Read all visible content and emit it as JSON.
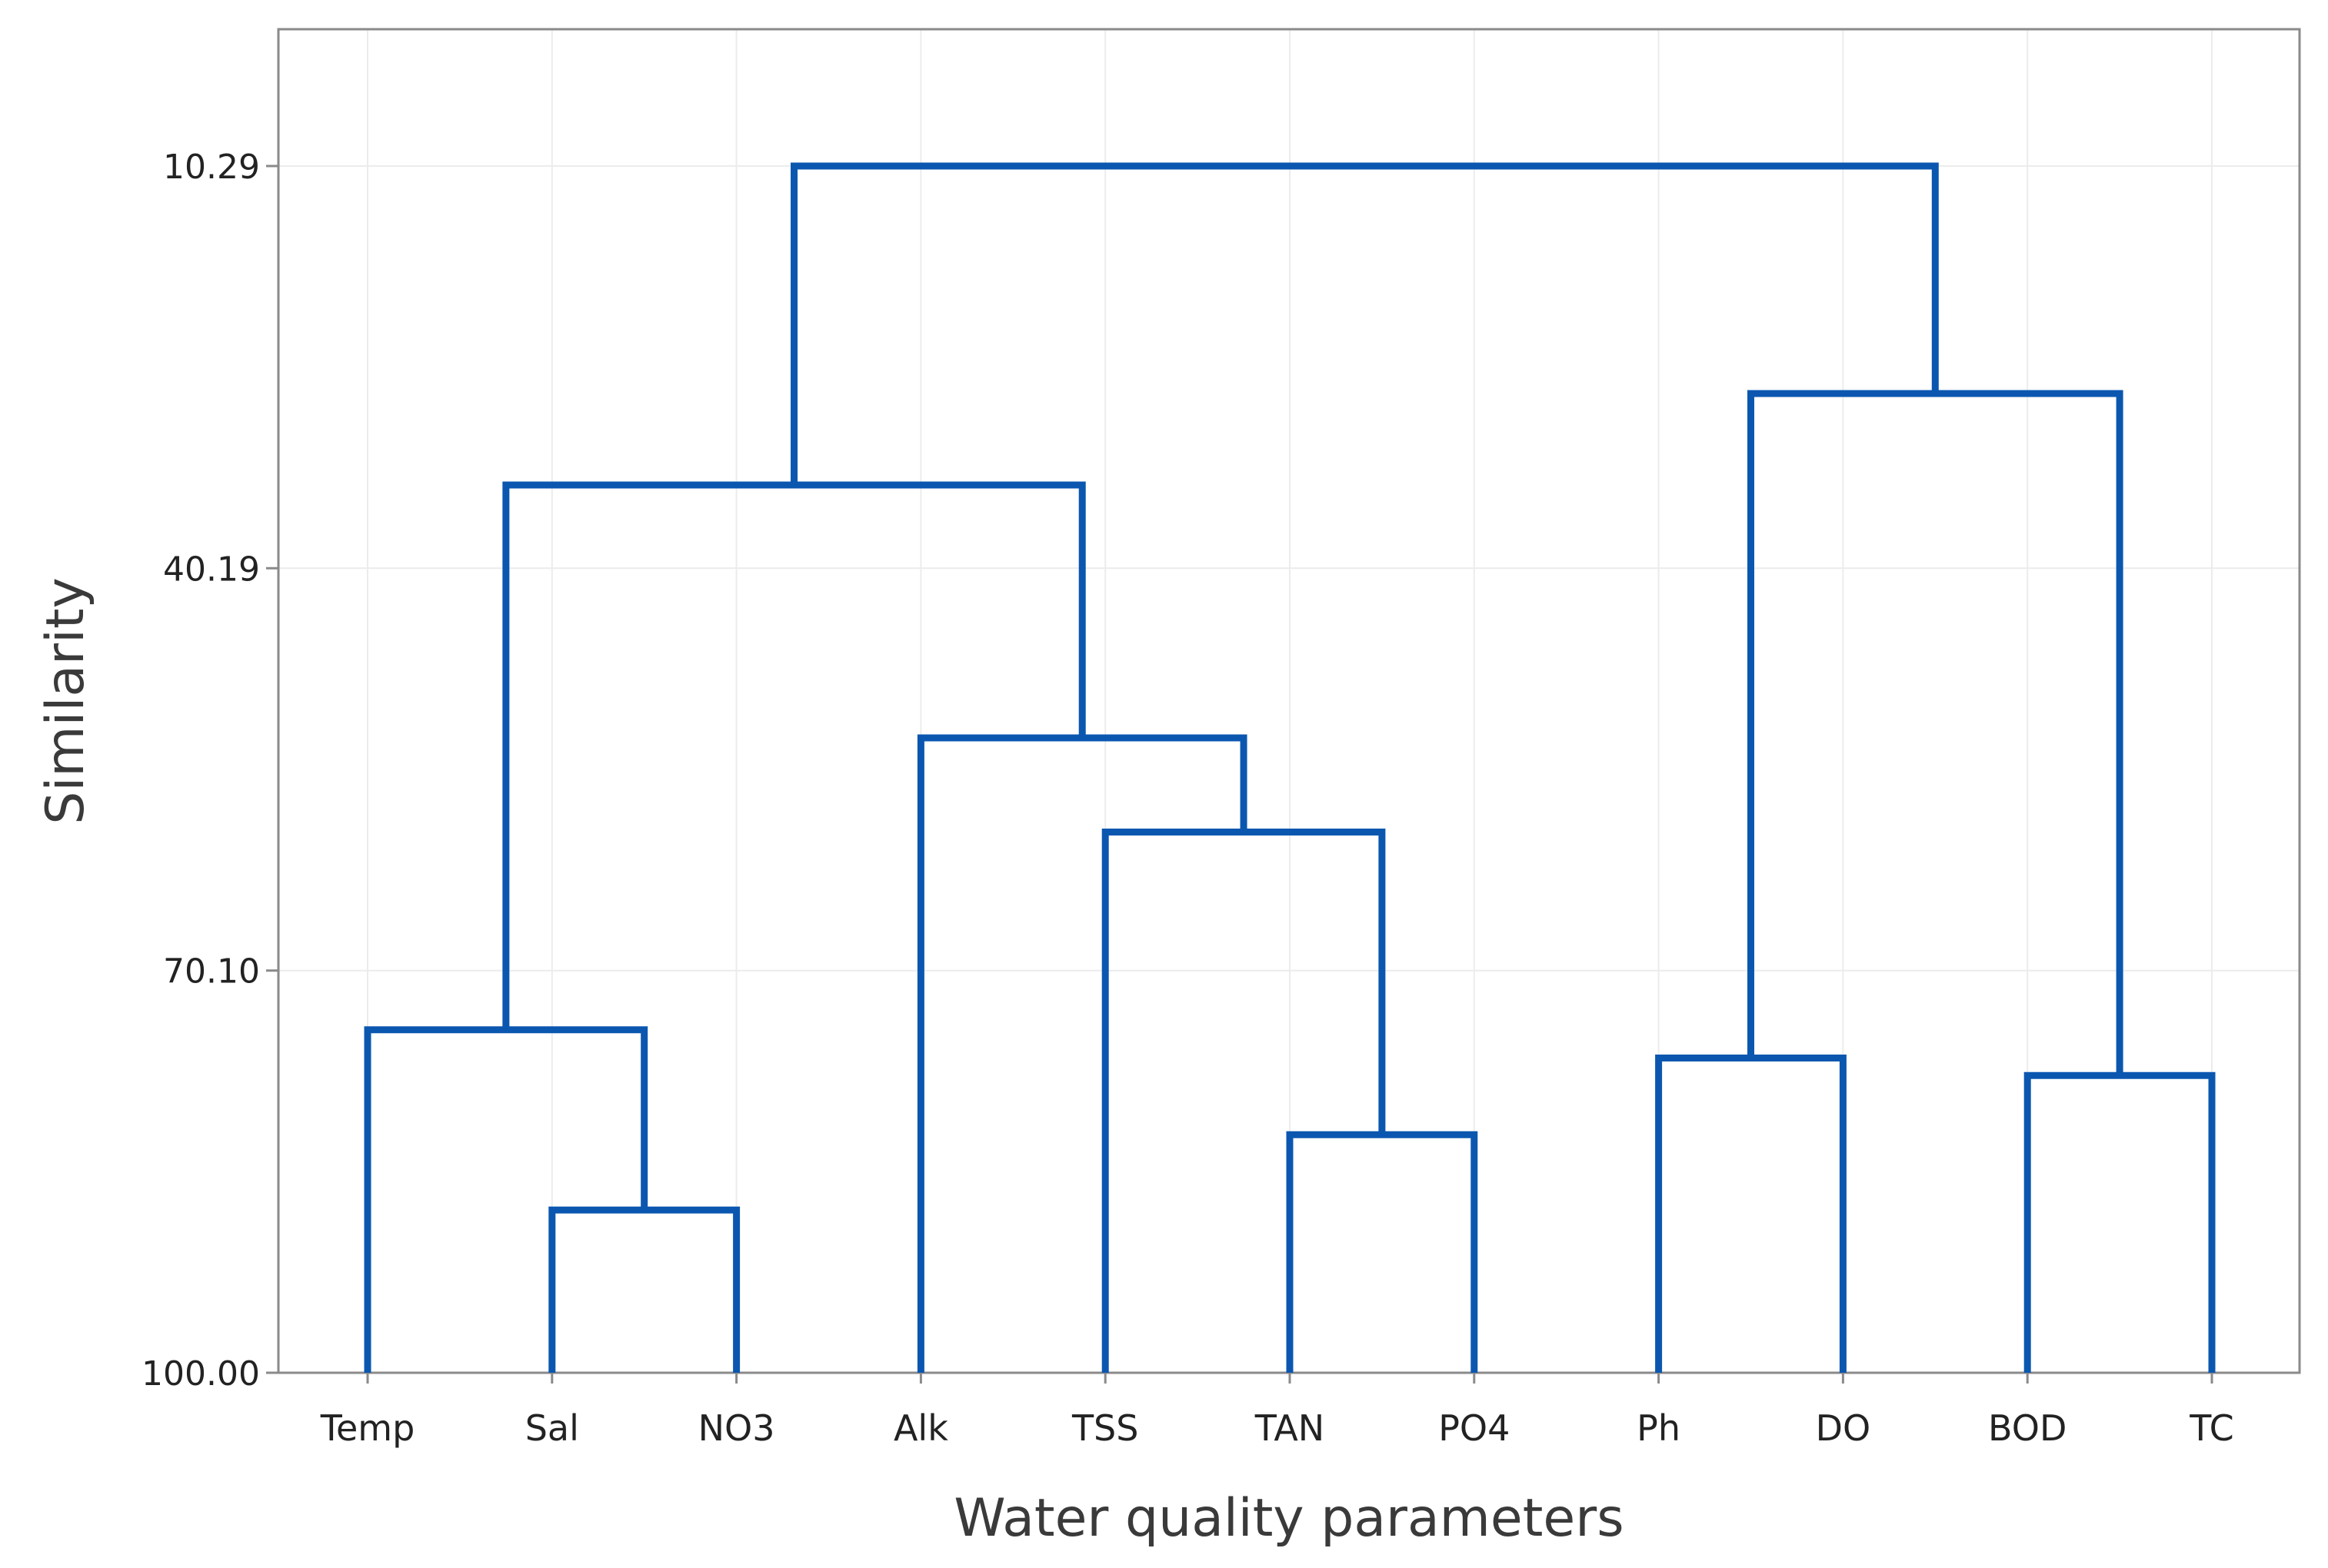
{
  "chart_data": {
    "type": "dendrogram",
    "xlabel": "Water quality parameters",
    "ylabel": "Similarity",
    "yticks": [
      10.29,
      40.19,
      70.1,
      100.0
    ],
    "ytick_labels": [
      "10.29",
      "40.19",
      "70.10",
      "100.00"
    ],
    "ylim": [
      0,
      100
    ],
    "y_inverted": true,
    "grid": true,
    "leaves": [
      "Temp",
      "Sal",
      "NO3",
      "Alk",
      "TSS",
      "TAN",
      "PO4",
      "Ph",
      "DO",
      "BOD",
      "TC"
    ],
    "merges": [
      {
        "left": "Sal",
        "right": "NO3",
        "similarity": 87.9
      },
      {
        "left": "TAN",
        "right": "PO4",
        "similarity": 82.3
      },
      {
        "left": "BOD",
        "right": "TC",
        "similarity": 77.9
      },
      {
        "left": "Ph",
        "right": "DO",
        "similarity": 76.6
      },
      {
        "left": "Temp",
        "right": "Sal+NO3",
        "similarity": 74.5
      },
      {
        "left": "TSS",
        "right": "TAN+PO4",
        "similarity": 59.8
      },
      {
        "left": "Alk",
        "right": "TSS+TAN+PO4",
        "similarity": 52.8
      },
      {
        "left": "Temp+Sal+NO3",
        "right": "Alk+TSS+TAN+PO4",
        "similarity": 34.0
      },
      {
        "left": "Ph+DO",
        "right": "BOD+TC",
        "similarity": 27.2
      },
      {
        "left": "Temp+Sal+NO3+Alk+TSS+TAN+PO4",
        "right": "Ph+DO+BOD+TC",
        "similarity": 10.29
      }
    ],
    "line_color": "#0b57b0",
    "grid_color": "#ececec",
    "frame_color": "#8a8a8a"
  }
}
